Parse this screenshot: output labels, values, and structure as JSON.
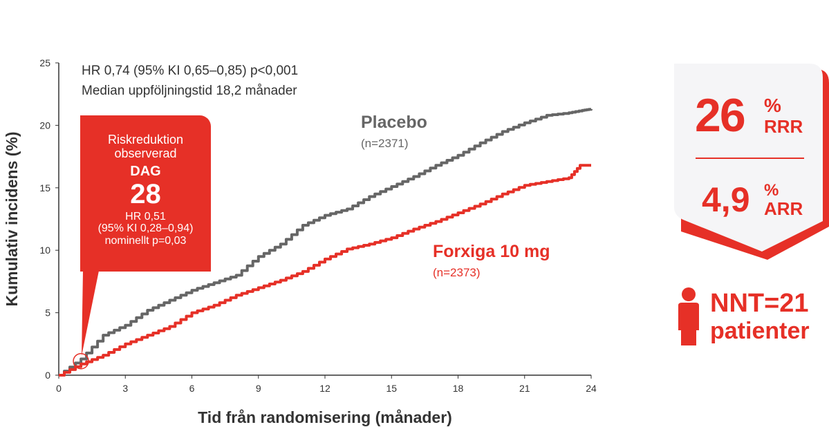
{
  "chart_data": {
    "type": "line",
    "title": "",
    "xlabel": "Tid från randomisering (månader)",
    "ylabel": "Kumulativ incidens (%)",
    "xlim": [
      0,
      24
    ],
    "ylim": [
      0,
      25
    ],
    "xticks": [
      "0",
      "3",
      "6",
      "9",
      "12",
      "15",
      "18",
      "21",
      "24"
    ],
    "yticks": [
      "0",
      "5",
      "10",
      "15",
      "20",
      "25"
    ],
    "grid": false,
    "annotations": [
      "HR 0,74 (95% KI 0,65–0,85) p<0,001",
      "Median uppföljningstid 18,2 månader"
    ],
    "series": [
      {
        "name": "Placebo",
        "n": "(n=2371)",
        "color": "#666666",
        "x": [
          0,
          1,
          2,
          3,
          4,
          5,
          6,
          7,
          8,
          9,
          10,
          11,
          12,
          13,
          14,
          15,
          16,
          17,
          18,
          19,
          20,
          21,
          22,
          23,
          23.6,
          24
        ],
        "y": [
          0,
          1.3,
          3.2,
          4,
          5.2,
          6,
          6.8,
          7.4,
          8,
          9.5,
          10.5,
          12,
          12.8,
          13.3,
          14.3,
          15.1,
          15.9,
          16.8,
          17.6,
          18.6,
          19.5,
          20.2,
          20.8,
          21,
          21.2,
          21.3
        ]
      },
      {
        "name": "Forxiga 10 mg",
        "n": "(n=2373)",
        "color": "#e63027",
        "x": [
          0,
          1,
          2,
          3,
          4,
          5,
          6,
          7,
          8,
          9,
          10,
          11,
          12,
          13,
          14,
          15,
          16,
          17,
          18,
          19,
          20,
          21,
          22,
          23,
          23.5,
          24
        ],
        "y": [
          0,
          0.9,
          1.6,
          2.5,
          3.2,
          3.9,
          5,
          5.6,
          6.4,
          7,
          7.6,
          8.3,
          9.3,
          10.1,
          10.5,
          11,
          11.7,
          12.3,
          13,
          13.7,
          14.5,
          15.2,
          15.5,
          15.8,
          16.8,
          16.8
        ]
      }
    ]
  },
  "callout": {
    "line1": "Riskreduktion",
    "line2": "observerad",
    "dag": "DAG",
    "day": "28",
    "hr": "HR 0,51",
    "ci": "(95% KI 0,28–0,94)",
    "p": "nominellt p=0,03"
  },
  "badge": {
    "rrr_value": "26",
    "rrr_unit": "%",
    "rrr_label": "RRR",
    "arr_value": "4,9",
    "arr_unit": "%",
    "arr_label": "ARR"
  },
  "nnt": {
    "label": "NNT=21",
    "sub": "patienter"
  },
  "colors": {
    "red": "#e63027",
    "gray": "#666666"
  }
}
